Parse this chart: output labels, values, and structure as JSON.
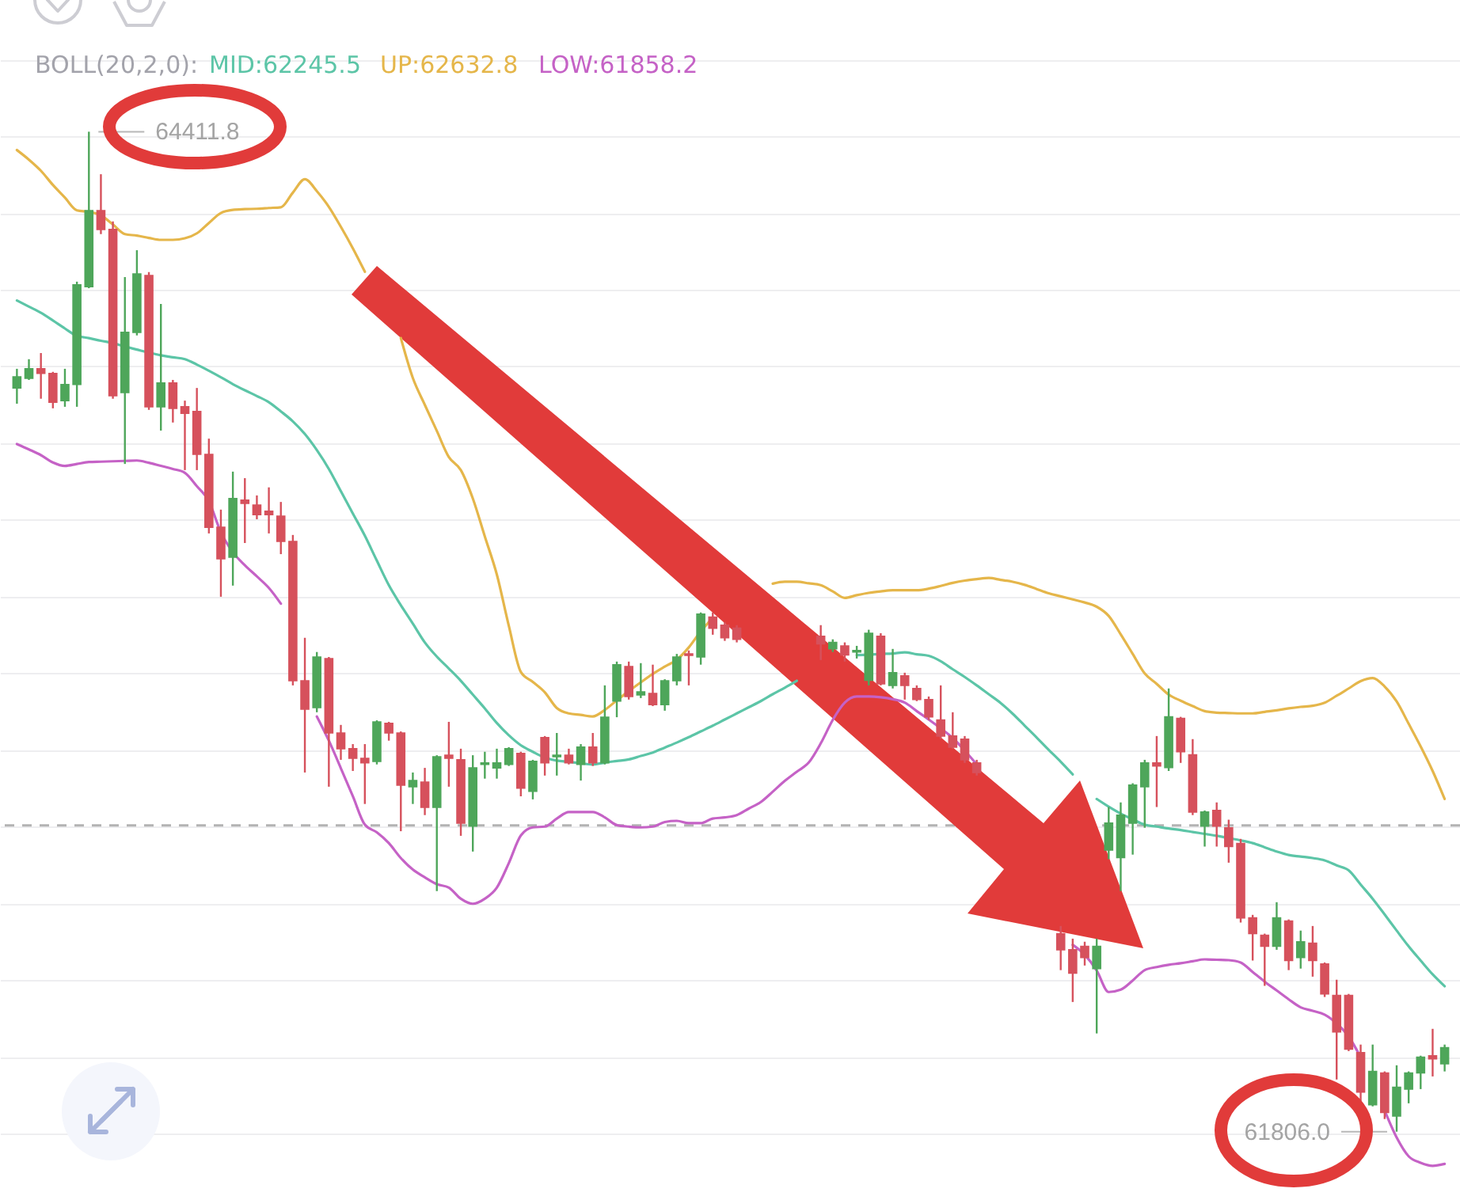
{
  "chart_data": {
    "type": "candlestick",
    "legend_title": "BOLL(20,2,0):",
    "legend": "top left",
    "grid": "y",
    "ylim": [
      61628,
      64755
    ],
    "yticks": [
      {
        "value": 61800,
        "label": null
      },
      {
        "value": 62000,
        "label": null
      },
      {
        "value": 62200,
        "label": null
      },
      {
        "value": 62400,
        "label": null
      },
      {
        "value": 62600,
        "label": null
      },
      {
        "value": 62800,
        "label": null
      },
      {
        "value": 63000,
        "label": null
      },
      {
        "value": 63200,
        "label": null
      },
      {
        "value": 63400,
        "label": null
      },
      {
        "value": 63600,
        "label": null
      },
      {
        "value": 63800,
        "label": null
      },
      {
        "value": 64000,
        "label": null
      },
      {
        "value": 64200,
        "label": null
      },
      {
        "value": 64400,
        "label": null
      },
      {
        "value": 64600,
        "label": null
      }
    ],
    "categories": [
      null,
      null,
      null,
      null,
      null,
      null,
      null,
      null,
      null,
      null,
      null,
      null,
      null,
      null,
      null,
      null,
      null,
      null,
      null,
      null,
      null,
      null,
      null,
      null,
      null,
      null,
      null,
      null,
      null,
      null,
      null,
      null,
      null,
      null,
      null,
      null,
      null,
      null,
      null,
      null,
      null,
      null,
      null,
      null,
      null,
      null,
      null,
      null,
      null,
      null,
      null,
      null,
      null,
      null,
      null,
      null,
      null,
      null,
      null,
      null,
      null,
      null,
      null,
      null,
      null,
      null,
      null,
      null,
      null,
      null,
      null,
      null,
      null,
      null,
      null,
      null,
      null,
      null,
      null,
      null,
      null,
      null,
      null,
      null,
      null,
      null,
      null,
      null,
      null,
      null,
      null,
      null,
      null,
      null,
      null,
      null,
      null,
      null,
      null,
      null,
      null,
      null,
      null,
      null,
      null,
      null,
      null,
      null,
      null,
      null,
      null,
      null,
      null,
      null,
      null,
      null,
      null,
      null,
      null,
      null
    ],
    "ohlc": [
      [
        63744,
        63794,
        63703,
        63773
      ],
      [
        63769,
        63819,
        63765,
        63794
      ],
      [
        63794,
        63835,
        63716,
        63782
      ],
      [
        63782,
        63786,
        63691,
        63707
      ],
      [
        63711,
        63794,
        63695,
        63753
      ],
      [
        63753,
        64021,
        63695,
        64013
      ],
      [
        64008,
        64411.8,
        64004,
        64206
      ],
      [
        64206,
        64301,
        64145,
        64157
      ],
      [
        64157,
        64178,
        63716,
        63724
      ],
      [
        63732,
        64033,
        63546,
        63889
      ],
      [
        63889,
        64103,
        63881,
        64041
      ],
      [
        64037,
        64046,
        63687,
        63695
      ],
      [
        63695,
        63963,
        63633,
        63757
      ],
      [
        63757,
        63765,
        63654,
        63691
      ],
      [
        63695,
        63711,
        63530,
        63678
      ],
      [
        63683,
        63744,
        63530,
        63571
      ],
      [
        63571,
        63612,
        63365,
        63381
      ],
      [
        63381,
        63427,
        63200,
        63299
      ],
      [
        63303,
        63526,
        63229,
        63456
      ],
      [
        63452,
        63509,
        63340,
        63443
      ],
      [
        63439,
        63464,
        63402,
        63414
      ],
      [
        63423,
        63485,
        63365,
        63414
      ],
      [
        63410,
        63447,
        63311,
        63344
      ],
      [
        63344,
        63361,
        62969,
        62981
      ],
      [
        62981,
        63093,
        62742,
        62907
      ],
      [
        62911,
        63056,
        62899,
        63043
      ],
      [
        63039,
        63043,
        62705,
        62845
      ],
      [
        62845,
        62866,
        62775,
        62804
      ],
      [
        62804,
        62816,
        62746,
        62779
      ],
      [
        62779,
        62816,
        62660,
        62767
      ],
      [
        62771,
        62878,
        62763,
        62874
      ],
      [
        62870,
        62874,
        62825,
        62845
      ],
      [
        62845,
        62849,
        62589,
        62709
      ],
      [
        62705,
        62742,
        62660,
        62721
      ],
      [
        62717,
        62754,
        62631,
        62651
      ],
      [
        62651,
        62787,
        62433,
        62783
      ],
      [
        62787,
        62874,
        62705,
        62779
      ],
      [
        62775,
        62804,
        62577,
        62610
      ],
      [
        62602,
        62787,
        62536,
        62754
      ],
      [
        62763,
        62796,
        62726,
        62767
      ],
      [
        62754,
        62804,
        62726,
        62767
      ],
      [
        62763,
        62808,
        62759,
        62804
      ],
      [
        62792,
        62796,
        62680,
        62701
      ],
      [
        62693,
        62775,
        62672,
        62771
      ],
      [
        62833,
        62837,
        62734,
        62767
      ],
      [
        62783,
        62845,
        62734,
        62787
      ],
      [
        62787,
        62804,
        62763,
        62767
      ],
      [
        62763,
        62816,
        62721,
        62808
      ],
      [
        62808,
        62845,
        62759,
        62767
      ],
      [
        62767,
        62969,
        62763,
        62886
      ],
      [
        62928,
        63031,
        62886,
        63023
      ],
      [
        63018,
        63031,
        62932,
        62940
      ],
      [
        62944,
        63027,
        62936,
        62952
      ],
      [
        62948,
        63023,
        62915,
        62919
      ],
      [
        62919,
        62985,
        62903,
        62981
      ],
      [
        62981,
        63051,
        62969,
        63043
      ],
      [
        63051,
        63060,
        62969,
        63047
      ],
      [
        63043,
        63159,
        63023,
        63155
      ],
      [
        63147,
        63159,
        63101,
        63118
      ],
      [
        63126,
        63134,
        63085,
        63093
      ],
      [
        63118,
        63126,
        63081,
        63089
      ],
      null,
      null,
      null,
      null,
      null,
      null,
      [
        63097,
        63126,
        63035,
        63077
      ],
      [
        63064,
        63089,
        63056,
        63081
      ],
      [
        63072,
        63081,
        63031,
        63048
      ],
      [
        63056,
        63072,
        63039,
        63060
      ],
      [
        62982,
        63114,
        62969,
        63105
      ],
      [
        63097,
        63105,
        62969,
        62973
      ],
      [
        62969,
        63064,
        62961,
        63002
      ],
      [
        62994,
        63002,
        62932,
        62969
      ],
      [
        62961,
        62969,
        62928,
        62932
      ],
      [
        62932,
        62940,
        62879,
        62887
      ],
      [
        62879,
        62969,
        62829,
        62837
      ],
      [
        62837,
        62899,
        62804,
        62808
      ],
      [
        62829,
        62837,
        62767,
        62775
      ],
      [
        62767,
        62775,
        62734,
        62742
      ],
      null,
      null,
      null,
      null,
      null,
      null,
      [
        62322,
        62342,
        62227,
        62280
      ],
      [
        62280,
        62309,
        62144,
        62219
      ],
      [
        62289,
        62301,
        62239,
        62260
      ],
      [
        62231,
        62309,
        62062,
        62289
      ],
      [
        62540,
        62652,
        62516,
        62610
      ],
      [
        62520,
        62664,
        62433,
        62631
      ],
      [
        62610,
        62714,
        62528,
        62709
      ],
      [
        62705,
        62775,
        62598,
        62767
      ],
      [
        62767,
        62837,
        62652,
        62759
      ],
      [
        62755,
        62961,
        62746,
        62887
      ],
      [
        62883,
        62887,
        62767,
        62796
      ],
      [
        62788,
        62829,
        62631,
        62639
      ],
      [
        62602,
        62643,
        62549,
        62639
      ],
      [
        62643,
        62664,
        62549,
        62602
      ],
      [
        62598,
        62619,
        62507,
        62549
      ],
      [
        62557,
        62569,
        62351,
        62363
      ],
      [
        62363,
        62371,
        62252,
        62322
      ],
      [
        62318,
        62322,
        62186,
        62289
      ],
      [
        62289,
        62404,
        62280,
        62363
      ],
      [
        62355,
        62359,
        62227,
        62252
      ],
      [
        62260,
        62330,
        62231,
        62301
      ],
      [
        62297,
        62342,
        62210,
        62252
      ],
      [
        62243,
        62247,
        62157,
        62165
      ],
      [
        62161,
        62202,
        61942,
        62066
      ],
      [
        62161,
        62165,
        62016,
        62021
      ],
      [
        62012,
        62033,
        61876,
        61909
      ],
      [
        61876,
        62033,
        61872,
        61963
      ],
      [
        61959,
        61963,
        61839,
        61856
      ],
      [
        61847,
        61979,
        61806.0,
        61922
      ],
      [
        61917,
        61963,
        61880,
        61959
      ],
      [
        61959,
        62004,
        61917,
        62000
      ],
      [
        62004,
        62074,
        61950,
        61996
      ],
      [
        61983,
        62033,
        61963,
        62025
      ]
    ],
    "colors": [
      "#4ea65a",
      "#4ea65a",
      "#d6515c",
      "#d6515c",
      "#4ea65a",
      "#4ea65a",
      "#4ea65a",
      "#d6515c",
      "#d6515c",
      "#4ea65a",
      "#4ea65a",
      "#d6515c",
      "#4ea65a",
      "#d6515c",
      "#d6515c",
      "#d6515c",
      "#d6515c",
      "#d6515c",
      "#4ea65a",
      "#d6515c",
      "#d6515c",
      "#d6515c",
      "#d6515c",
      "#d6515c",
      "#d6515c",
      "#4ea65a",
      "#d6515c",
      "#d6515c",
      "#d6515c",
      "#d6515c",
      "#4ea65a",
      "#d6515c",
      "#d6515c",
      "#4ea65a",
      "#d6515c",
      "#4ea65a",
      "#d6515c",
      "#d6515c",
      "#4ea65a",
      "#4ea65a",
      "#4ea65a",
      "#4ea65a",
      "#d6515c",
      "#4ea65a",
      "#d6515c",
      "#4ea65a",
      "#d6515c",
      "#4ea65a",
      "#d6515c",
      "#4ea65a",
      "#4ea65a",
      "#d6515c",
      "#4ea65a",
      "#d6515c",
      "#4ea65a",
      "#4ea65a",
      "#d6515c",
      "#4ea65a",
      "#d6515c",
      "#d6515c",
      "#d6515c",
      null,
      null,
      null,
      null,
      null,
      null,
      "#d6515c",
      "#4ea65a",
      "#d6515c",
      "#4ea65a",
      "#4ea65a",
      "#d6515c",
      "#4ea65a",
      "#d6515c",
      "#d6515c",
      "#d6515c",
      "#d6515c",
      "#d6515c",
      "#d6515c",
      "#d6515c",
      null,
      null,
      null,
      null,
      null,
      null,
      "#d6515c",
      "#d6515c",
      "#d6515c",
      "#4ea65a",
      "#4ea65a",
      "#4ea65a",
      "#4ea65a",
      "#4ea65a",
      "#d6515c",
      "#4ea65a",
      "#d6515c",
      "#d6515c",
      "#4ea65a",
      "#d6515c",
      "#d6515c",
      "#d6515c",
      "#d6515c",
      "#d6515c",
      "#4ea65a",
      "#d6515c",
      "#4ea65a",
      "#d6515c",
      "#d6515c",
      "#d6515c",
      "#d6515c",
      "#d6515c",
      "#4ea65a",
      "#d6515c",
      "#4ea65a",
      "#4ea65a",
      "#4ea65a",
      "#d6515c",
      "#4ea65a"
    ],
    "series": [
      {
        "name": "MID:62245.5",
        "type": "line",
        "color": "#5cc5a7",
        "values": [
          63972,
          63956,
          63940,
          63920,
          63899,
          63880,
          63874,
          63867,
          63861,
          63852,
          63844,
          63836,
          63829,
          63824,
          63819,
          63805,
          63789,
          63772,
          63754,
          63738,
          63723,
          63707,
          63683,
          63657,
          63624,
          63582,
          63533,
          63475,
          63417,
          63359,
          63294,
          63230,
          63178,
          63130,
          63081,
          63044,
          63013,
          62981,
          62945,
          62909,
          62871,
          62839,
          62813,
          62796,
          62781,
          62773,
          62770,
          62766,
          62763,
          62768,
          62772,
          62776,
          62785,
          62794,
          62807,
          62820,
          62834,
          62849,
          62864,
          62880,
          62896,
          62912,
          62928,
          62946,
          62963,
          62981,
          null,
          null,
          null,
          null,
          63048,
          63049,
          63051,
          63052,
          63055,
          63050,
          63046,
          63032,
          63011,
          62991,
          62969,
          62946,
          62923,
          62895,
          62864,
          62833,
          62801,
          62770,
          62737,
          null,
          62673,
          62653,
          62635,
          62620,
          62606,
          62601,
          62596,
          62592,
          62587,
          62582,
          62577,
          62571,
          62565,
          62558,
          62547,
          62536,
          62527,
          62523,
          62519,
          62513,
          62500,
          62487,
          62450,
          62413,
          62372,
          62330,
          62289,
          62252,
          62216,
          62185
        ]
      },
      {
        "name": "UP:62632.8",
        "type": "line",
        "color": "#e5b64a",
        "values": [
          64364,
          64339,
          64310,
          64273,
          64240,
          64207,
          64203,
          64194,
          64170,
          64145,
          64141,
          64135,
          64130,
          64130,
          64134,
          64147,
          64174,
          64200,
          64208,
          64210,
          64211,
          64213,
          64215,
          64253,
          64288,
          64257,
          64216,
          64164,
          64108,
          64047,
          null,
          null,
          63874,
          63770,
          63700,
          63632,
          63564,
          63530,
          63456,
          63357,
          63258,
          63124,
          63004,
          62978,
          62951,
          62910,
          62896,
          62892,
          62888,
          62905,
          62930,
          62954,
          62977,
          62999,
          63018,
          63036,
          63068,
          63110,
          63145,
          null,
          null,
          null,
          null,
          63234,
          63239,
          63239,
          63235,
          63230,
          63214,
          63197,
          63204,
          63210,
          63214,
          63217,
          63217,
          63217,
          63221,
          63228,
          63236,
          63242,
          63246,
          63249,
          63244,
          63239,
          63231,
          63220,
          63209,
          63201,
          63193,
          63185,
          63174,
          63150,
          63102,
          63051,
          63000,
          62973,
          62945,
          62929,
          62915,
          62902,
          62898,
          62897,
          62896,
          62896,
          62900,
          62904,
          62909,
          62913,
          62916,
          62924,
          62942,
          62961,
          62980,
          62988,
          62966,
          62927,
          62869,
          62810,
          62746,
          62673
        ]
      },
      {
        "name": "LOW:61858.2",
        "type": "line",
        "color": "#c562c6",
        "values": [
          63598,
          63584,
          63569,
          63550,
          63541,
          63546,
          63551,
          63552,
          63553,
          63554,
          63555,
          63549,
          63541,
          63533,
          63523,
          63488,
          63449,
          63368,
          63316,
          63282,
          63253,
          63223,
          63182,
          null,
          null,
          62888,
          62825,
          62753,
          62680,
          62606,
          62586,
          62558,
          62519,
          62489,
          62469,
          62451,
          62442,
          62413,
          62400,
          62413,
          62442,
          62506,
          62578,
          62599,
          62601,
          62622,
          62639,
          62639,
          62639,
          62625,
          62605,
          62601,
          62599,
          62601,
          62613,
          62616,
          62610,
          62610,
          62622,
          62625,
          62631,
          62648,
          62665,
          62692,
          62720,
          62744,
          62768,
          62818,
          62879,
          62924,
          62940,
          62940,
          62938,
          62933,
          62924,
          62902,
          62880,
          62857,
          62832,
          62799,
          62763,
          null,
          null,
          null,
          null,
          null,
          null,
          null,
          62293,
          62267,
          62226,
          62170,
          62176,
          62200,
          62227,
          62235,
          62241,
          62245,
          62250,
          62255,
          62254,
          62253,
          62247,
          62222,
          62197,
          62174,
          62151,
          62130,
          62121,
          62111,
          62088,
          62054,
          62000,
          null,
          61861,
          61791,
          61742,
          61725,
          61717,
          61722
        ]
      }
    ],
    "ref_lines": [
      {
        "axis": "y",
        "value": 62604,
        "color": "#b3b3b3",
        "line_style": "dashed"
      }
    ],
    "annotations": [
      "64411.8",
      "61806.0"
    ]
  }
}
